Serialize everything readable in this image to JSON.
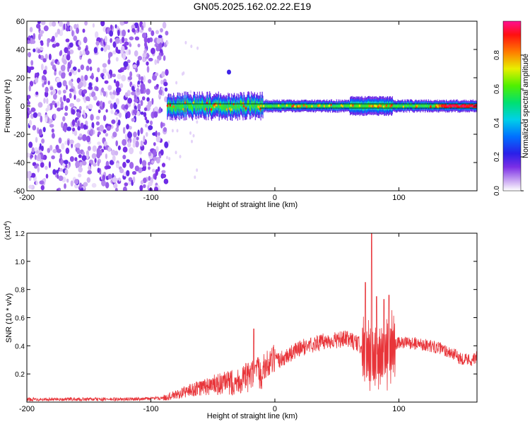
{
  "title": "GN05.2025.162.02.22.E19",
  "chart_data": [
    {
      "type": "heatmap",
      "xlabel": "Height of straight line (km)",
      "ylabel": "Frequency (Hz)",
      "xlim": [
        -200,
        163
      ],
      "ylim": [
        -60,
        60
      ],
      "x_ticks": [
        -200,
        -100,
        0,
        100
      ],
      "y_ticks": [
        -60,
        -40,
        -20,
        0,
        20,
        40,
        60
      ],
      "grid": false,
      "colorbar": {
        "label": "Normalized spectral amplitude",
        "range": [
          0,
          1
        ],
        "ticks": [
          "0.0",
          "0.2",
          "0.4",
          "0.6",
          "0.8"
        ],
        "colormap": "rainbow (white-violet-blue-cyan-green-yellow-red-magenta)"
      },
      "features": [
        {
          "name": "noise",
          "x_range": [
            -200,
            -87
          ],
          "freq_range": [
            -60,
            60
          ],
          "amplitude": [
            0.02,
            0.15
          ]
        },
        {
          "name": "signal band",
          "x_range": [
            -87,
            163
          ],
          "center_freq": 0,
          "halfwidth_hz": [
            3,
            8
          ],
          "amplitude": [
            0.3,
            1.0
          ]
        },
        {
          "name": "spot",
          "x": -37,
          "freq": 24,
          "amplitude": 0.2
        }
      ]
    },
    {
      "type": "line",
      "xlabel": "Height of straight line (km)",
      "ylabel": "SNR (10 * v/v)",
      "y_multiplier": "(x10^4)",
      "xlim": [
        -200,
        163
      ],
      "ylim": [
        0,
        1.2
      ],
      "x_ticks": [
        -200,
        -100,
        0,
        100
      ],
      "y_ticks": [
        "0.2",
        "0.4",
        "0.6",
        "0.8",
        "1.0",
        "1.2"
      ],
      "grid": false,
      "color": "#e8353a",
      "series": [
        {
          "envelope_x": [
            -200,
            -120,
            -100,
            -90,
            -80,
            -70,
            -60,
            -50,
            -40,
            -30,
            -20,
            -10,
            0,
            10,
            20,
            30,
            40,
            50,
            60,
            65,
            70,
            75,
            80,
            85,
            90,
            95,
            100,
            110,
            120,
            130,
            140,
            150,
            160,
            163
          ],
          "envelope_y": [
            0.02,
            0.02,
            0.025,
            0.03,
            0.05,
            0.08,
            0.1,
            0.12,
            0.13,
            0.15,
            0.18,
            0.22,
            0.28,
            0.33,
            0.38,
            0.41,
            0.43,
            0.44,
            0.45,
            0.42,
            0.4,
            0.35,
            0.3,
            0.32,
            0.35,
            0.4,
            0.42,
            0.42,
            0.41,
            0.39,
            0.36,
            0.31,
            0.3,
            0.32
          ],
          "spikes": [
            {
              "x": -17,
              "y": 0.52
            },
            {
              "x": 73,
              "y": 0.85
            },
            {
              "x": 78,
              "y": 1.2
            },
            {
              "x": 82,
              "y": 0.75
            },
            {
              "x": 88,
              "y": 0.73
            },
            {
              "x": 92,
              "y": 0.76
            }
          ]
        }
      ]
    }
  ]
}
